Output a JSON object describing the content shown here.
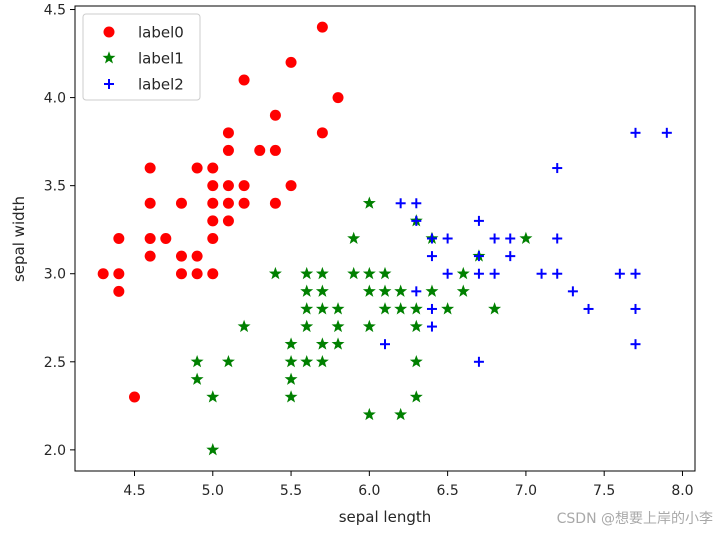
{
  "watermark": "CSDN @想要上岸的小李",
  "chart_data": {
    "type": "scatter",
    "title": "",
    "xlabel": "sepal length",
    "ylabel": "sepal width",
    "xlim": [
      4.12,
      8.08
    ],
    "ylim": [
      1.88,
      4.52
    ],
    "xticks": [
      "4.5",
      "5.0",
      "5.5",
      "6.0",
      "6.5",
      "7.0",
      "7.5",
      "8.0"
    ],
    "yticks": [
      "2.0",
      "2.5",
      "3.0",
      "3.5",
      "4.0",
      "4.5"
    ],
    "grid": false,
    "legend_position": "upper-left",
    "series": [
      {
        "name": "label0",
        "marker": "circle",
        "color": "#ff0000",
        "points": [
          [
            4.3,
            3.0
          ],
          [
            4.4,
            2.9
          ],
          [
            4.4,
            3.0
          ],
          [
            4.4,
            3.2
          ],
          [
            4.5,
            2.3
          ],
          [
            4.6,
            3.1
          ],
          [
            4.6,
            3.2
          ],
          [
            4.6,
            3.4
          ],
          [
            4.6,
            3.6
          ],
          [
            4.7,
            3.2
          ],
          [
            4.8,
            3.0
          ],
          [
            4.8,
            3.1
          ],
          [
            4.8,
            3.4
          ],
          [
            4.9,
            3.0
          ],
          [
            4.9,
            3.1
          ],
          [
            4.9,
            3.6
          ],
          [
            5.0,
            3.0
          ],
          [
            5.0,
            3.2
          ],
          [
            5.0,
            3.3
          ],
          [
            5.0,
            3.4
          ],
          [
            5.0,
            3.5
          ],
          [
            5.0,
            3.6
          ],
          [
            5.1,
            3.3
          ],
          [
            5.1,
            3.4
          ],
          [
            5.1,
            3.5
          ],
          [
            5.1,
            3.7
          ],
          [
            5.1,
            3.8
          ],
          [
            5.2,
            3.4
          ],
          [
            5.2,
            3.5
          ],
          [
            5.2,
            4.1
          ],
          [
            5.3,
            3.7
          ],
          [
            5.4,
            3.4
          ],
          [
            5.4,
            3.7
          ],
          [
            5.4,
            3.9
          ],
          [
            5.5,
            3.5
          ],
          [
            5.5,
            4.2
          ],
          [
            5.7,
            3.8
          ],
          [
            5.7,
            4.4
          ],
          [
            5.8,
            4.0
          ]
        ]
      },
      {
        "name": "label1",
        "marker": "star",
        "color": "#008000",
        "points": [
          [
            4.9,
            2.4
          ],
          [
            4.9,
            2.5
          ],
          [
            5.0,
            2.0
          ],
          [
            5.0,
            2.3
          ],
          [
            5.1,
            2.5
          ],
          [
            5.2,
            2.7
          ],
          [
            5.4,
            3.0
          ],
          [
            5.5,
            2.3
          ],
          [
            5.5,
            2.4
          ],
          [
            5.5,
            2.5
          ],
          [
            5.5,
            2.6
          ],
          [
            5.6,
            2.5
          ],
          [
            5.6,
            2.7
          ],
          [
            5.6,
            2.8
          ],
          [
            5.6,
            2.9
          ],
          [
            5.6,
            3.0
          ],
          [
            5.7,
            2.5
          ],
          [
            5.7,
            2.6
          ],
          [
            5.7,
            2.8
          ],
          [
            5.7,
            2.9
          ],
          [
            5.7,
            3.0
          ],
          [
            5.8,
            2.6
          ],
          [
            5.8,
            2.7
          ],
          [
            5.8,
            2.8
          ],
          [
            5.9,
            3.0
          ],
          [
            5.9,
            3.2
          ],
          [
            6.0,
            2.2
          ],
          [
            6.0,
            2.7
          ],
          [
            6.0,
            2.9
          ],
          [
            6.0,
            3.0
          ],
          [
            6.0,
            3.4
          ],
          [
            6.1,
            2.8
          ],
          [
            6.1,
            2.9
          ],
          [
            6.1,
            3.0
          ],
          [
            6.2,
            2.2
          ],
          [
            6.2,
            2.8
          ],
          [
            6.2,
            2.9
          ],
          [
            6.3,
            2.3
          ],
          [
            6.3,
            2.5
          ],
          [
            6.3,
            2.7
          ],
          [
            6.3,
            2.8
          ],
          [
            6.3,
            3.3
          ],
          [
            6.4,
            2.9
          ],
          [
            6.4,
            3.2
          ],
          [
            6.5,
            2.8
          ],
          [
            6.6,
            2.9
          ],
          [
            6.6,
            3.0
          ],
          [
            6.7,
            3.1
          ],
          [
            6.8,
            2.8
          ],
          [
            7.0,
            3.2
          ]
        ]
      },
      {
        "name": "label2",
        "marker": "plus",
        "color": "#0000ff",
        "points": [
          [
            6.1,
            2.6
          ],
          [
            6.2,
            3.4
          ],
          [
            6.3,
            2.9
          ],
          [
            6.3,
            3.3
          ],
          [
            6.3,
            3.4
          ],
          [
            6.4,
            2.7
          ],
          [
            6.4,
            2.8
          ],
          [
            6.4,
            3.1
          ],
          [
            6.4,
            3.2
          ],
          [
            6.5,
            3.0
          ],
          [
            6.5,
            3.2
          ],
          [
            6.7,
            2.5
          ],
          [
            6.7,
            3.0
          ],
          [
            6.7,
            3.1
          ],
          [
            6.7,
            3.3
          ],
          [
            6.8,
            3.0
          ],
          [
            6.8,
            3.2
          ],
          [
            6.9,
            3.1
          ],
          [
            6.9,
            3.2
          ],
          [
            7.1,
            3.0
          ],
          [
            7.2,
            3.0
          ],
          [
            7.2,
            3.2
          ],
          [
            7.2,
            3.6
          ],
          [
            7.3,
            2.9
          ],
          [
            7.4,
            2.8
          ],
          [
            7.6,
            3.0
          ],
          [
            7.7,
            2.6
          ],
          [
            7.7,
            2.8
          ],
          [
            7.7,
            3.0
          ],
          [
            7.7,
            3.8
          ],
          [
            7.9,
            3.8
          ]
        ]
      }
    ]
  }
}
